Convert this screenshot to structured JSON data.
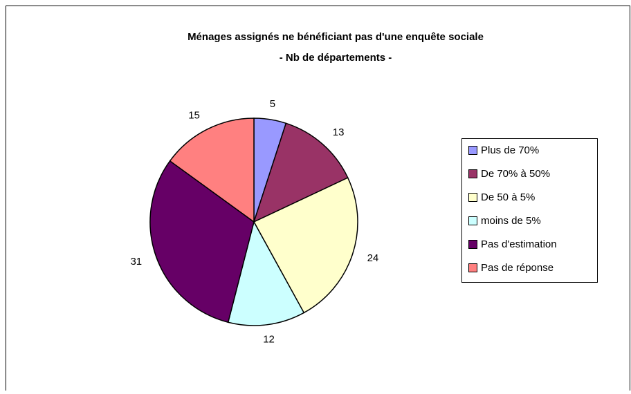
{
  "chart_data": {
    "type": "pie",
    "title": "Ménages assignés ne bénéficiant pas d'une enquête sociale",
    "subtitle": "- Nb de départements -",
    "categories": [
      "Plus de 70%",
      "De 70% à 50%",
      "De 50 à 5%",
      "moins de 5%",
      "Pas d'estimation",
      "Pas de réponse"
    ],
    "values": [
      5,
      13,
      24,
      12,
      31,
      15
    ],
    "colors": [
      "#9999FF",
      "#993366",
      "#FFFFCC",
      "#CCFFFF",
      "#660066",
      "#FF8080"
    ],
    "legend": "right"
  }
}
